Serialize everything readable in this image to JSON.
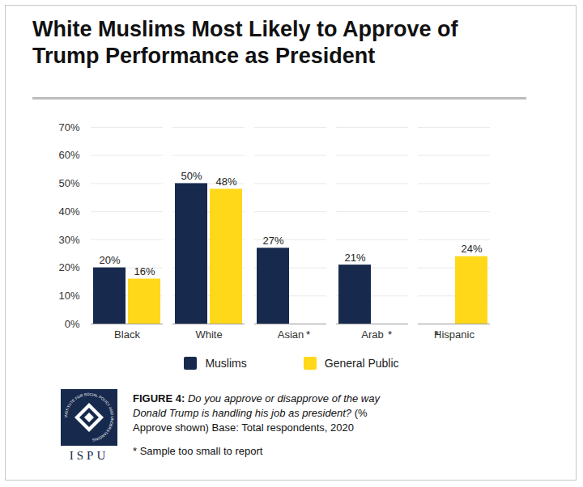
{
  "chart_data": {
    "type": "bar",
    "title": "White Muslims Most Likely to Approve of Trump Performance as President",
    "categories": [
      "Black",
      "White",
      "Asian",
      "Arab",
      "Hispanic"
    ],
    "series": [
      {
        "name": "Muslims",
        "color": "#172a4e",
        "values": [
          20,
          50,
          27,
          21,
          null
        ],
        "value_labels": [
          "20%",
          "50%",
          "27%",
          "21%",
          "*"
        ]
      },
      {
        "name": "General Public",
        "color": "#ffd81a",
        "values": [
          16,
          48,
          null,
          null,
          24
        ],
        "value_labels": [
          "16%",
          "48%",
          "*",
          "*",
          "24%"
        ]
      }
    ],
    "ylim": [
      0,
      70
    ],
    "yticks": [
      {
        "value": 0,
        "label": "0%"
      },
      {
        "value": 10,
        "label": "10%"
      },
      {
        "value": 20,
        "label": "20%"
      },
      {
        "value": 30,
        "label": "30%"
      },
      {
        "value": 40,
        "label": "40%"
      },
      {
        "value": 50,
        "label": "50%"
      },
      {
        "value": 60,
        "label": "60%"
      },
      {
        "value": 70,
        "label": "70%"
      }
    ],
    "grid": true,
    "data_labels": true,
    "legend": "bottom",
    "caption_label": "FIGURE 4:",
    "caption_question": "Do you approve or disapprove of the way Donald Trump is handling his job as president?",
    "caption_base": "(% Approve shown) Base: Total respondents, 2020",
    "footnote": "* Sample too small to report",
    "logo_text": "ISPU",
    "logo_ring_text": "INSTITUTE FOR SOCIAL POLICY AND UNDERSTANDING"
  }
}
